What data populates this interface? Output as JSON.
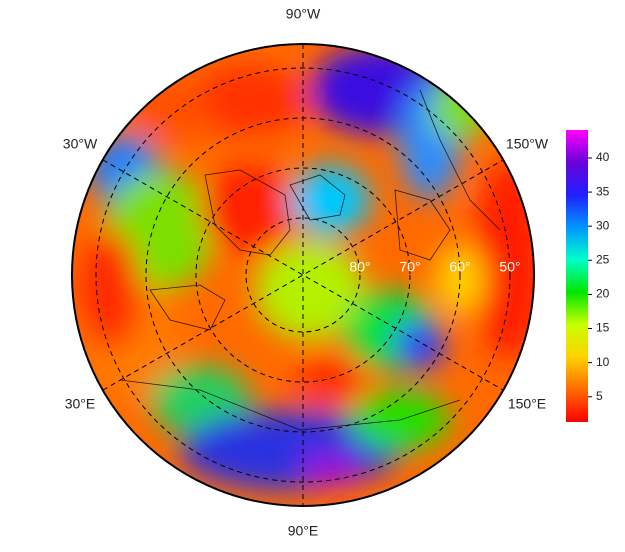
{
  "map": {
    "longitude_labels": [
      "90°W",
      "30°W",
      "150°W",
      "30°E",
      "150°E",
      "90°E"
    ],
    "latitude_labels": [
      "80°",
      "70°",
      "60°",
      "50°"
    ],
    "colorbar": {
      "range": [
        1.3,
        44.1
      ],
      "ticks": [
        5,
        10,
        15,
        20,
        25,
        30,
        35,
        40
      ],
      "colors": [
        "#ff0000",
        "#ff6a00",
        "#ffd200",
        "#c8ff00",
        "#00e600",
        "#00ffc8",
        "#0096ff",
        "#2020ff",
        "#6a00d8",
        "#ff00ff"
      ]
    }
  }
}
